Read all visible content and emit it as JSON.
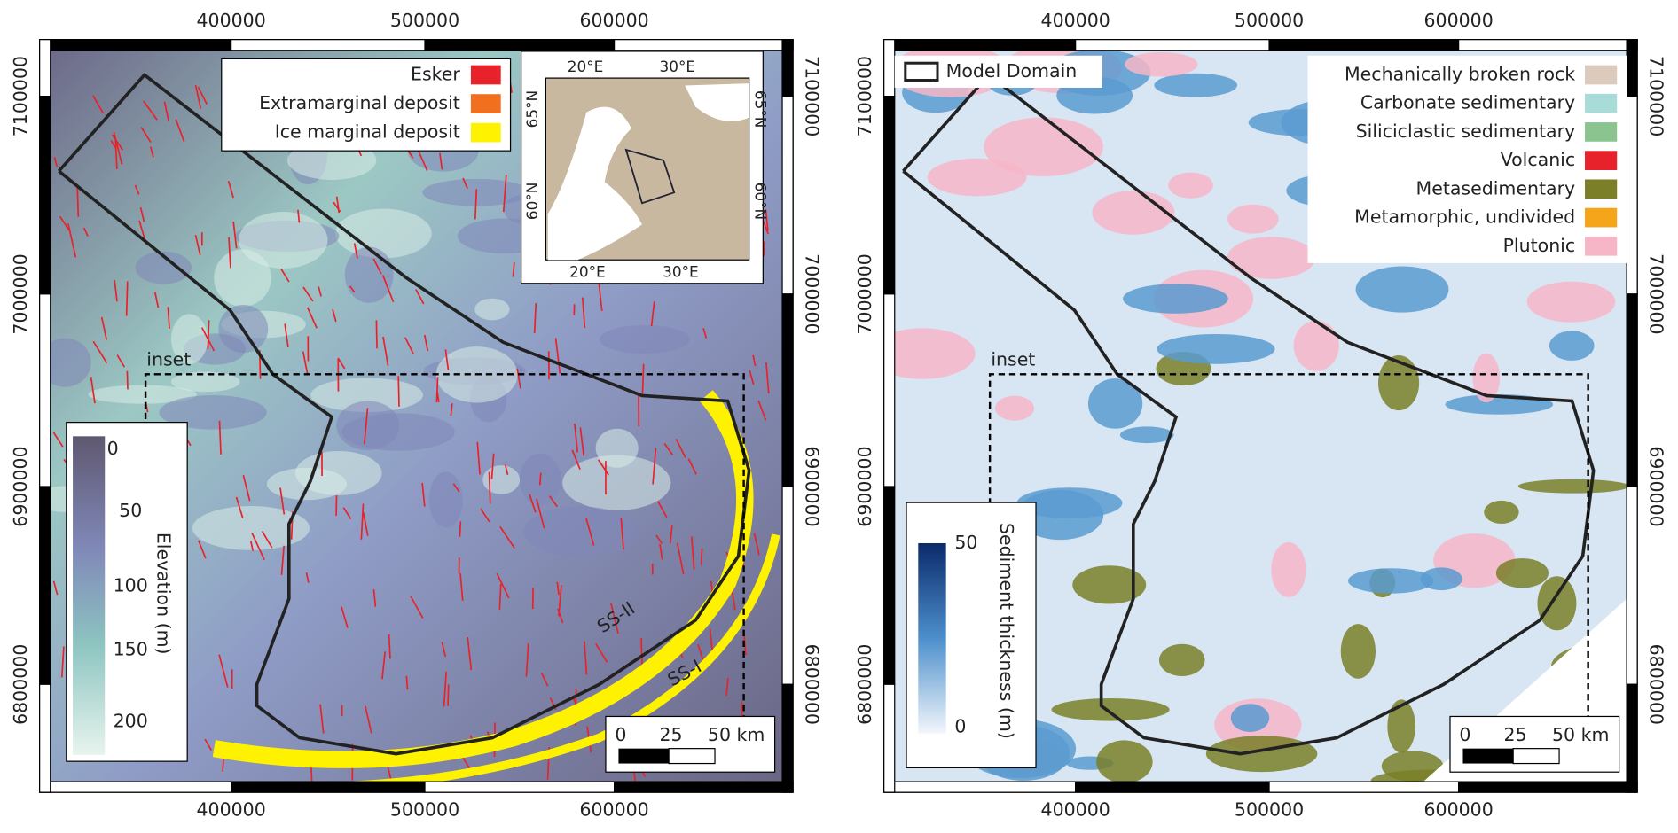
{
  "panels": [
    {
      "x_ticks": [
        400000,
        500000,
        600000
      ],
      "y_ticks": [
        7100000,
        7000000,
        6900000,
        6800000
      ],
      "legend": [
        {
          "label": "Esker",
          "color": "#e8222a"
        },
        {
          "label": "Extramarginal deposit",
          "color": "#f07020"
        },
        {
          "label": "Ice marginal deposit",
          "color": "#fff200"
        }
      ],
      "locator": {
        "lon_labels": [
          "20°E",
          "30°E"
        ],
        "lat_labels": [
          "65°N",
          "60°N"
        ]
      },
      "inset_label": "inset",
      "colorbar": {
        "title": "Elevation (m)",
        "ticks": [
          0,
          50,
          100,
          150,
          200
        ]
      },
      "profile_labels": [
        "SS-II",
        "SS-I"
      ],
      "scale_bar": [
        "0",
        "25",
        "50 km"
      ]
    },
    {
      "x_ticks": [
        400000,
        500000,
        600000
      ],
      "y_ticks": [
        7100000,
        7000000,
        6900000,
        6800000
      ],
      "domain_label": "Model Domain",
      "legend": [
        {
          "label": "Mechanically broken rock",
          "color": "#dccabd"
        },
        {
          "label": "Carbonate sedimentary",
          "color": "#a8dcd8"
        },
        {
          "label": "Siliciclastic sedimentary",
          "color": "#8bc48e"
        },
        {
          "label": "Volcanic",
          "color": "#e8222a"
        },
        {
          "label": "Metasedimentary",
          "color": "#7a7f28"
        },
        {
          "label": "Metamorphic, undivided",
          "color": "#f5a51a"
        },
        {
          "label": "Plutonic",
          "color": "#f7b6c8"
        }
      ],
      "inset_label": "inset",
      "colorbar": {
        "title": "Sediment thickness (m)",
        "ticks": [
          50,
          0
        ]
      },
      "scale_bar": [
        "0",
        "25",
        "50 km"
      ]
    }
  ]
}
